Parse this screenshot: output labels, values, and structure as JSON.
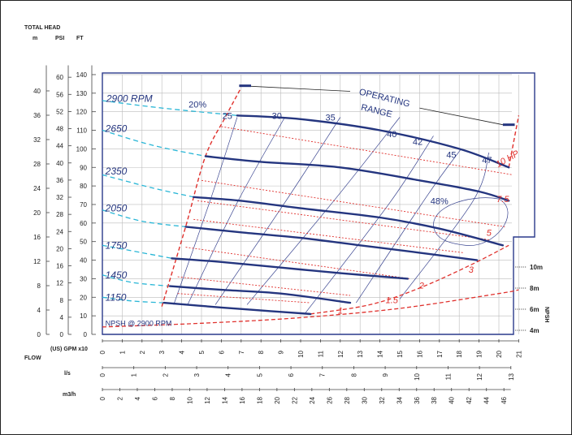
{
  "header": {
    "total_head": "TOTAL HEAD",
    "m": "m",
    "psi": "PSI",
    "ft": "FT",
    "flow": "FLOW",
    "gpm": "(US) GPM x10",
    "ls": "l/s",
    "m3h": "m3/h",
    "npsh": "NPSH"
  },
  "chart_data": {
    "type": "line",
    "title": "",
    "colors": {
      "head": "#24357f",
      "efficiency": "#e0312d",
      "power": "#e0312d",
      "reduced_speed": "#29b6d6",
      "frame": "#2a3a8c"
    },
    "axes": {
      "gpm_x10": {
        "label": "(US) GPM x10",
        "ticks": [
          0,
          1,
          2,
          3,
          4,
          5,
          6,
          7,
          8,
          9,
          10,
          11,
          12,
          13,
          14,
          15,
          16,
          17,
          18,
          19,
          20,
          21
        ],
        "range": [
          0,
          21
        ]
      },
      "ls": {
        "label": "l/s",
        "ticks": [
          0,
          1,
          2,
          3,
          4,
          5,
          6,
          7,
          8,
          9,
          10,
          11,
          12,
          13
        ],
        "range": [
          0,
          13
        ]
      },
      "m3h": {
        "label": "m3/h",
        "ticks": [
          0,
          2,
          4,
          6,
          8,
          10,
          12,
          14,
          16,
          18,
          20,
          22,
          24,
          26,
          28,
          30,
          32,
          34,
          36,
          38,
          40,
          42,
          44,
          46
        ],
        "range": [
          0,
          47
        ]
      },
      "ft": {
        "label": "FT",
        "ticks": [
          0,
          10,
          20,
          30,
          40,
          50,
          60,
          70,
          80,
          90,
          100,
          110,
          120,
          130,
          140
        ],
        "range": [
          0,
          140
        ]
      },
      "psi": {
        "label": "PSI",
        "ticks": [
          0,
          4,
          8,
          12,
          16,
          20,
          24,
          28,
          32,
          36,
          40,
          44,
          48,
          52,
          56,
          60
        ]
      },
      "m": {
        "label": "m",
        "ticks": [
          0,
          4,
          8,
          12,
          16,
          20,
          24,
          28,
          32,
          36,
          40
        ]
      },
      "npsh": {
        "label": "NPSH",
        "ticks": [
          "4m",
          "6m",
          "8m",
          "10m"
        ]
      },
      "grid": true
    },
    "head_curves_ft": [
      {
        "name": "2900 RPM",
        "x": [
          6.8,
          10,
          14,
          18,
          20.5
        ],
        "y": [
          118,
          116,
          110,
          100,
          90
        ]
      },
      {
        "name": "2650",
        "x": [
          5.2,
          8,
          12,
          16,
          19,
          20.5
        ],
        "y": [
          96,
          93,
          90,
          83,
          77,
          72
        ]
      },
      {
        "name": "2350",
        "x": [
          4.6,
          7,
          10,
          14,
          17,
          20.2
        ],
        "y": [
          74,
          72,
          68,
          63,
          57,
          48
        ]
      },
      {
        "name": "2050",
        "x": [
          4.2,
          7,
          10,
          13,
          16,
          18.9
        ],
        "y": [
          58,
          55,
          52,
          48,
          44,
          40
        ]
      },
      {
        "name": "1750",
        "x": [
          3.5,
          6,
          9,
          12,
          15.4
        ],
        "y": [
          41,
          39,
          36,
          33,
          30
        ]
      },
      {
        "name": "1450",
        "x": [
          3.4,
          6,
          9,
          12.5
        ],
        "y": [
          26,
          24,
          22,
          17
        ]
      },
      {
        "name": "1150",
        "x": [
          3.1,
          6,
          8.5,
          10.5
        ],
        "y": [
          17,
          14.5,
          12.5,
          11
        ]
      }
    ],
    "reduced_speed_ft": [
      {
        "x": [
          0,
          3,
          6.8
        ],
        "y": [
          126,
          122,
          118
        ]
      },
      {
        "x": [
          0,
          2.5,
          5.2
        ],
        "y": [
          110,
          102,
          96
        ]
      },
      {
        "x": [
          0,
          2.5,
          4.6
        ],
        "y": [
          86,
          79,
          74
        ]
      },
      {
        "x": [
          0,
          2,
          4.2
        ],
        "y": [
          67,
          61,
          58
        ]
      },
      {
        "x": [
          0,
          2,
          3.5
        ],
        "y": [
          48,
          44,
          41
        ]
      },
      {
        "x": [
          0,
          1.5,
          3.4
        ],
        "y": [
          32,
          28,
          26
        ]
      },
      {
        "x": [
          0,
          1.5,
          3.1
        ],
        "y": [
          20,
          18,
          17
        ]
      }
    ],
    "efficiency_lines": [
      {
        "label": "20%",
        "x": [
          3.0,
          4.2,
          5.2,
          6.2,
          7.0
        ],
        "y": [
          15,
          58,
          96,
          117,
          133
        ]
      },
      {
        "label": "25",
        "x": [
          3.6,
          5.4,
          6.8
        ],
        "y": [
          16,
          71,
          117
        ]
      },
      {
        "label": "30",
        "x": [
          4.3,
          6.8,
          9.2
        ],
        "y": [
          16,
          71,
          117
        ]
      },
      {
        "label": "35",
        "x": [
          5.7,
          9.2,
          12.0
        ],
        "y": [
          16,
          71,
          117
        ]
      },
      {
        "label": "40",
        "x": [
          7.3,
          11.6,
          15.0
        ],
        "y": [
          16,
          71,
          117
        ]
      },
      {
        "label": "42",
        "x": [
          10.2,
          14.5,
          16.7
        ],
        "y": [
          11,
          71,
          107
        ]
      },
      {
        "label": "45",
        "x": [
          12.8,
          16.4,
          18.1
        ],
        "y": [
          17,
          75,
          100
        ]
      },
      {
        "label": "47",
        "x": [
          15.0,
          18.7,
          19.5
        ],
        "y": [
          19,
          72,
          98
        ]
      }
    ],
    "eff_label_48": "48%",
    "power_lines": [
      {
        "label": "1",
        "x": [
          3.8,
          10.5
        ],
        "y": [
          22,
          17
        ]
      },
      {
        "label": "1.5",
        "x": [
          3.8,
          12.5
        ],
        "y": [
          31,
          21
        ]
      },
      {
        "label": "2",
        "x": [
          4.2,
          15.5
        ],
        "y": [
          47,
          30
        ]
      },
      {
        "label": "3",
        "x": [
          4.6,
          18.2
        ],
        "y": [
          62,
          44
        ]
      },
      {
        "label": "5",
        "x": [
          4.8,
          19.5
        ],
        "y": [
          72,
          51
        ]
      },
      {
        "label": "7.5",
        "x": [
          5.0,
          20.3
        ],
        "y": [
          83,
          58
        ]
      },
      {
        "label": "10 HP",
        "x": [
          6.0,
          20.7
        ],
        "y": [
          112,
          86
        ]
      }
    ],
    "npsh_curve": {
      "label": "NPSH @ 2900 RPM",
      "x": [
        0,
        5,
        10,
        15,
        20,
        21
      ],
      "y": [
        4,
        6,
        9,
        14,
        22,
        24
      ]
    },
    "min_flow_line": {
      "x": [
        3.0,
        6.8
      ],
      "y": [
        16,
        133
      ]
    },
    "max_flow_line": {
      "x": [
        20.5,
        21
      ],
      "y": [
        90,
        118
      ]
    },
    "mcsf_curve": {
      "x": [
        10.5,
        13.5,
        16,
        18.5,
        20.5
      ],
      "y": [
        11,
        16,
        25,
        37,
        48
      ]
    },
    "operating_range_label": "OPERATING RANGE"
  }
}
